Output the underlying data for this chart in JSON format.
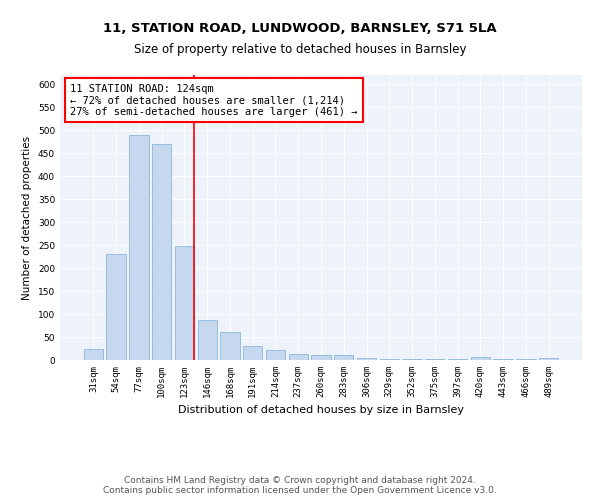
{
  "title1": "11, STATION ROAD, LUNDWOOD, BARNSLEY, S71 5LA",
  "title2": "Size of property relative to detached houses in Barnsley",
  "xlabel": "Distribution of detached houses by size in Barnsley",
  "ylabel": "Number of detached properties",
  "categories": [
    "31sqm",
    "54sqm",
    "77sqm",
    "100sqm",
    "123sqm",
    "146sqm",
    "168sqm",
    "191sqm",
    "214sqm",
    "237sqm",
    "260sqm",
    "283sqm",
    "306sqm",
    "329sqm",
    "352sqm",
    "375sqm",
    "397sqm",
    "420sqm",
    "443sqm",
    "466sqm",
    "489sqm"
  ],
  "values": [
    25,
    230,
    490,
    470,
    248,
    88,
    62,
    30,
    22,
    13,
    10,
    10,
    5,
    3,
    3,
    3,
    3,
    7,
    3,
    3,
    5
  ],
  "bar_color": "#c5d8f0",
  "bar_edge_color": "#7bafd4",
  "red_line_index": 4,
  "annotation_line1": "11 STATION ROAD: 124sqm",
  "annotation_line2": "← 72% of detached houses are smaller (1,214)",
  "annotation_line3": "27% of semi-detached houses are larger (461) →",
  "annotation_box_color": "white",
  "annotation_box_edge_color": "red",
  "vline_color": "red",
  "ylim": [
    0,
    620
  ],
  "yticks": [
    0,
    50,
    100,
    150,
    200,
    250,
    300,
    350,
    400,
    450,
    500,
    550,
    600
  ],
  "bg_color": "#eef2fa",
  "grid_color": "white",
  "footer": "Contains HM Land Registry data © Crown copyright and database right 2024.\nContains public sector information licensed under the Open Government Licence v3.0.",
  "title1_fontsize": 9.5,
  "title2_fontsize": 8.5,
  "xlabel_fontsize": 8,
  "ylabel_fontsize": 7.5,
  "tick_fontsize": 6.5,
  "annotation_fontsize": 7.5,
  "footer_fontsize": 6.5
}
